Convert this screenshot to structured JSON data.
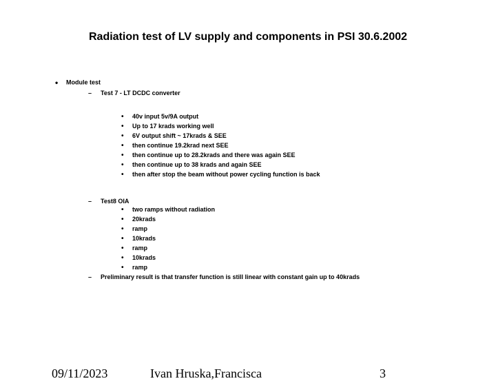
{
  "title": "Radiation test of LV supply and components in PSI 30.6.2002",
  "section1": {
    "label": "Module test",
    "sub1": {
      "label": "Test 7 - LT DCDC converter",
      "items": [
        "40v input 5v/9A output",
        "Up to 17 krads working well",
        "6V output shift ~ 17krads  & SEE",
        "then continue 19.2krad next SEE",
        "then continue up to 28.2krads and there was again SEE",
        "then continue up to 38 krads and again SEE",
        "then after stop the beam without power cycling function is back"
      ]
    },
    "sub2": {
      "label": "Test8 OIA",
      "items": [
        "two ramps without radiation",
        "20krads",
        "ramp",
        "10krads",
        "ramp",
        "10krads",
        "ramp"
      ]
    },
    "sub3": {
      "label": "Preliminary result is that transfer function is still linear with constant gain up to 40krads"
    }
  },
  "footer": {
    "date": "09/11/2023",
    "author": "Ivan Hruska,Francisca",
    "page": "3"
  }
}
